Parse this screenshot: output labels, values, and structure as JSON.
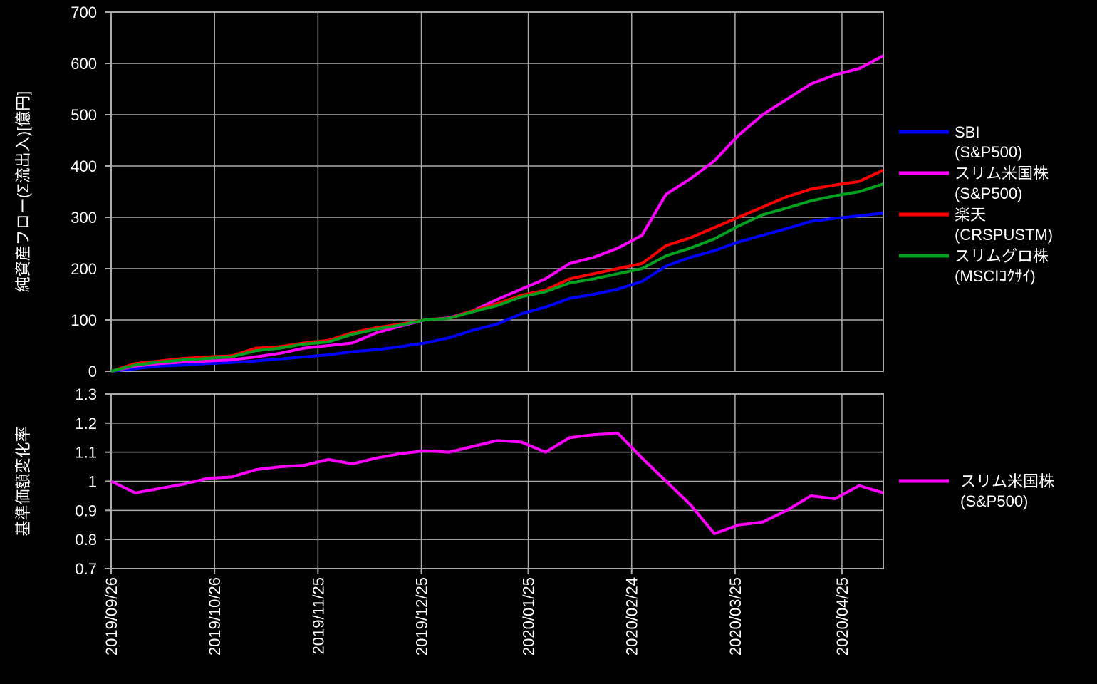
{
  "chart_data": [
    {
      "type": "line",
      "ylabel": "純資産フロー(Σ流出入)[億円]",
      "x": [
        "2019/09/26",
        "2019/10/03",
        "2019/10/10",
        "2019/10/17",
        "2019/10/24",
        "2019/10/31",
        "2019/11/07",
        "2019/11/14",
        "2019/11/21",
        "2019/11/28",
        "2019/12/05",
        "2019/12/12",
        "2019/12/19",
        "2019/12/26",
        "2020/01/02",
        "2020/01/09",
        "2020/01/16",
        "2020/01/23",
        "2020/01/30",
        "2020/02/06",
        "2020/02/13",
        "2020/02/20",
        "2020/02/27",
        "2020/03/05",
        "2020/03/12",
        "2020/03/19",
        "2020/03/26",
        "2020/04/02",
        "2020/04/09",
        "2020/04/16",
        "2020/04/23",
        "2020/04/30",
        "2020/05/07"
      ],
      "xlim": [
        "2019/09/26",
        "2020/05/07"
      ],
      "xticks": [
        "2019/09/26",
        "2019/10/26",
        "2019/11/25",
        "2019/12/25",
        "2020/01/25",
        "2020/02/24",
        "2020/03/25",
        "2020/04/25"
      ],
      "ylim": [
        0,
        700
      ],
      "yticks": [
        0,
        100,
        200,
        300,
        400,
        500,
        600,
        700
      ],
      "grid": true,
      "series": [
        {
          "name": "SBI\n(S&P500)",
          "color": "#0000ff",
          "values": [
            0,
            5,
            10,
            12,
            15,
            17,
            20,
            24,
            28,
            32,
            38,
            42,
            48,
            55,
            65,
            80,
            92,
            112,
            125,
            142,
            150,
            160,
            175,
            205,
            222,
            235,
            252,
            265,
            278,
            292,
            298,
            303,
            308
          ]
        },
        {
          "name": "スリム米国株\n(S&P500)",
          "color": "#ff00ff",
          "values": [
            0,
            10,
            15,
            18,
            20,
            22,
            28,
            35,
            45,
            50,
            55,
            75,
            88,
            100,
            104,
            118,
            140,
            160,
            180,
            210,
            222,
            240,
            265,
            345,
            375,
            410,
            460,
            500,
            530,
            560,
            578,
            590,
            615
          ]
        },
        {
          "name": "楽天\n(CRSPUSTM)",
          "color": "#ff0000",
          "values": [
            0,
            15,
            20,
            25,
            28,
            30,
            45,
            48,
            55,
            60,
            75,
            85,
            92,
            100,
            103,
            118,
            132,
            148,
            158,
            180,
            190,
            200,
            210,
            245,
            260,
            280,
            300,
            320,
            340,
            355,
            363,
            370,
            392
          ]
        },
        {
          "name": "スリムグロ株\n(MSCIｺｸｻｲ)",
          "color": "#00a020",
          "values": [
            0,
            12,
            18,
            22,
            25,
            28,
            40,
            45,
            53,
            57,
            72,
            82,
            90,
            100,
            103,
            116,
            128,
            145,
            155,
            172,
            180,
            190,
            200,
            225,
            240,
            258,
            283,
            305,
            318,
            332,
            342,
            350,
            365
          ]
        }
      ]
    },
    {
      "type": "line",
      "ylabel": "基準価額変化率",
      "x": [
        "2019/09/26",
        "2019/10/03",
        "2019/10/10",
        "2019/10/17",
        "2019/10/24",
        "2019/10/31",
        "2019/11/07",
        "2019/11/14",
        "2019/11/21",
        "2019/11/28",
        "2019/12/05",
        "2019/12/12",
        "2019/12/19",
        "2019/12/26",
        "2020/01/02",
        "2020/01/09",
        "2020/01/16",
        "2020/01/23",
        "2020/01/30",
        "2020/02/06",
        "2020/02/13",
        "2020/02/20",
        "2020/02/27",
        "2020/03/05",
        "2020/03/12",
        "2020/03/19",
        "2020/03/26",
        "2020/04/02",
        "2020/04/09",
        "2020/04/16",
        "2020/04/23",
        "2020/04/30",
        "2020/05/07"
      ],
      "xlim": [
        "2019/09/26",
        "2020/05/07"
      ],
      "xticks": [
        "2019/09/26",
        "2019/10/26",
        "2019/11/25",
        "2019/12/25",
        "2020/01/25",
        "2020/02/24",
        "2020/03/25",
        "2020/04/25"
      ],
      "ylim": [
        0.7,
        1.3
      ],
      "yticks": [
        0.7,
        0.8,
        0.9,
        1,
        1.1,
        1.2,
        1.3
      ],
      "grid": true,
      "series": [
        {
          "name": "スリム米国株\n(S&P500)",
          "color": "#ff00ff",
          "values": [
            1.0,
            0.96,
            0.975,
            0.99,
            1.01,
            1.015,
            1.04,
            1.05,
            1.055,
            1.075,
            1.06,
            1.08,
            1.095,
            1.105,
            1.1,
            1.12,
            1.14,
            1.135,
            1.1,
            1.15,
            1.16,
            1.165,
            1.08,
            1.0,
            0.92,
            0.82,
            0.85,
            0.86,
            0.9,
            0.95,
            0.94,
            0.985,
            0.96
          ]
        }
      ]
    }
  ]
}
